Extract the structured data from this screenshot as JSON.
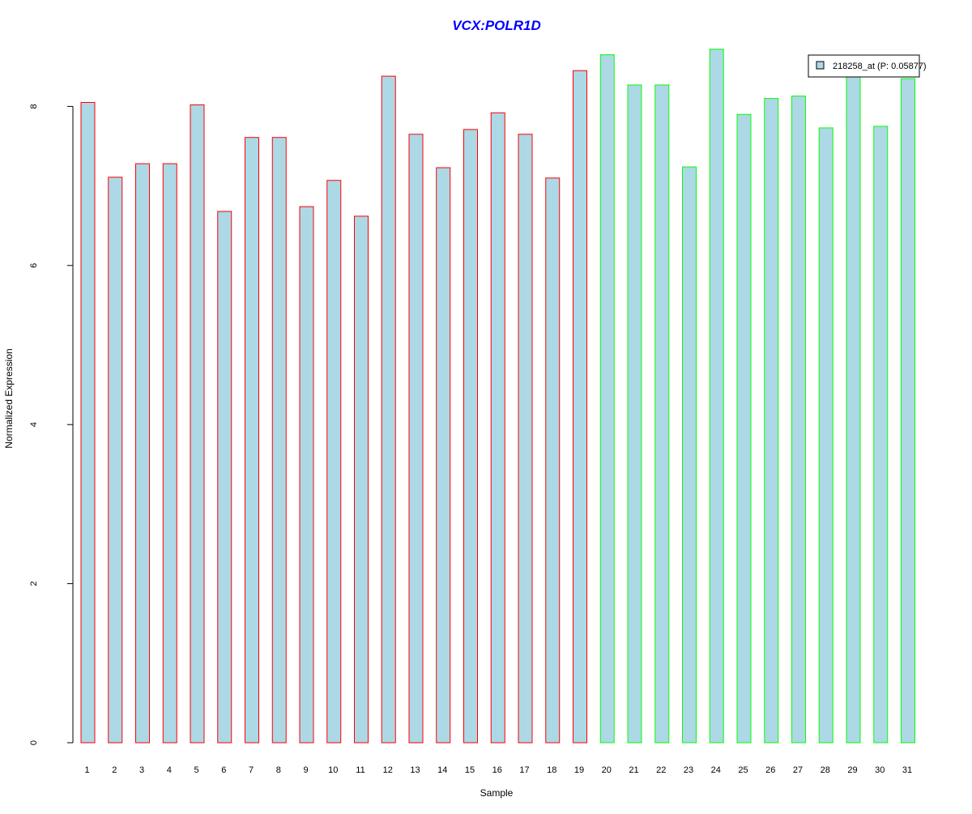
{
  "chart_data": {
    "type": "bar",
    "title": "VCX:POLR1D",
    "xlabel": "Sample",
    "ylabel": "Normalized Expression",
    "ylim": [
      0,
      8.7
    ],
    "yticks": [
      0,
      2,
      4,
      6,
      8
    ],
    "grid": false,
    "legend_position": "top-right",
    "categories": [
      "1",
      "2",
      "3",
      "4",
      "5",
      "6",
      "7",
      "8",
      "9",
      "10",
      "11",
      "12",
      "13",
      "14",
      "15",
      "16",
      "17",
      "18",
      "19",
      "20",
      "21",
      "22",
      "23",
      "24",
      "25",
      "26",
      "27",
      "28",
      "29",
      "30",
      "31"
    ],
    "series": [
      {
        "name": "218258_at (P: 0.05877)",
        "values": [
          8.05,
          7.11,
          7.28,
          7.28,
          8.02,
          6.68,
          7.61,
          7.61,
          6.74,
          7.07,
          6.62,
          8.38,
          7.65,
          7.23,
          7.71,
          7.92,
          7.65,
          7.1,
          8.45,
          8.65,
          8.27,
          8.27,
          7.24,
          8.72,
          7.9,
          8.1,
          8.13,
          7.73,
          8.4,
          7.75,
          8.35
        ],
        "fill_color": "#add8e6",
        "border_colors": [
          "#ff0000",
          "#ff0000",
          "#ff0000",
          "#ff0000",
          "#ff0000",
          "#ff0000",
          "#ff0000",
          "#ff0000",
          "#ff0000",
          "#ff0000",
          "#ff0000",
          "#ff0000",
          "#ff0000",
          "#ff0000",
          "#ff0000",
          "#ff0000",
          "#ff0000",
          "#ff0000",
          "#ff0000",
          "#00ff00",
          "#00ff00",
          "#00ff00",
          "#00ff00",
          "#00ff00",
          "#00ff00",
          "#00ff00",
          "#00ff00",
          "#00ff00",
          "#00ff00",
          "#00ff00",
          "#00ff00"
        ]
      }
    ],
    "title_color": "#0000ff"
  }
}
